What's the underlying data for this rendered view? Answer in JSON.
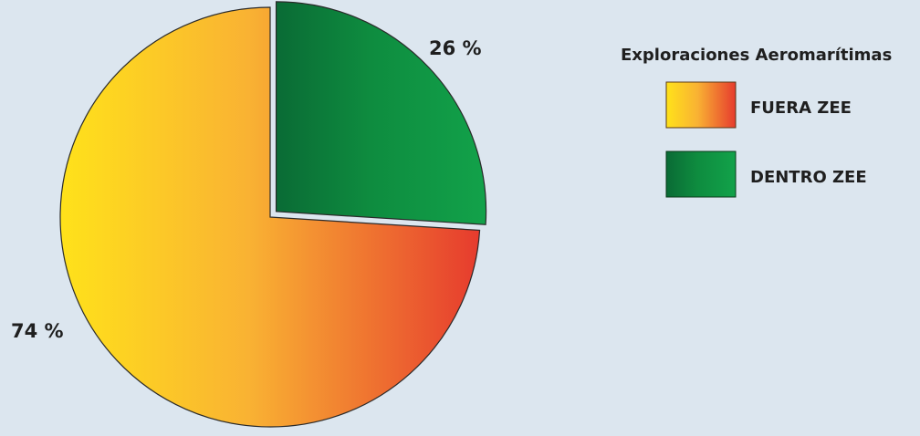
{
  "chart_data": {
    "type": "pie",
    "legend_title": "Exploraciones Aeromarítimas",
    "legend_position": "top-right",
    "slices": [
      {
        "name": "FUERA ZEE",
        "value": 74,
        "label": "74 %",
        "gradient": [
          "#ffe21a",
          "#f9b233",
          "#e63b2e"
        ]
      },
      {
        "name": "DENTRO ZEE",
        "value": 26,
        "label": "26 %",
        "gradient": [
          "#0a6b35",
          "#0e8c3f",
          "#12a24a"
        ]
      }
    ]
  }
}
